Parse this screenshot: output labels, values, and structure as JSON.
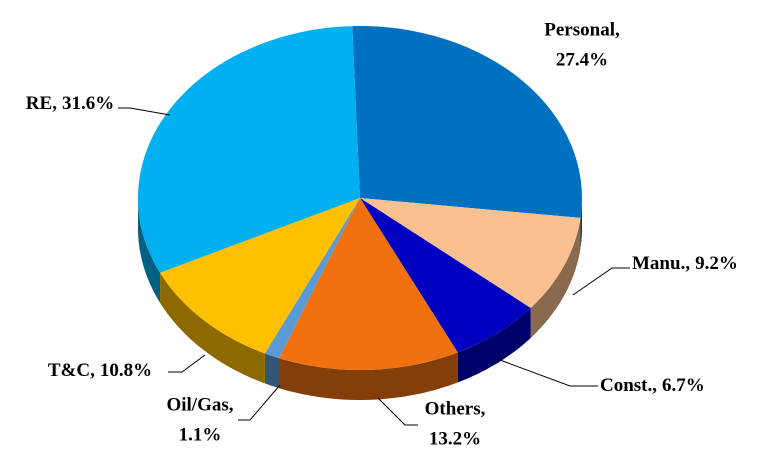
{
  "chart_data": {
    "type": "pie",
    "categories": [
      "Personal,",
      "Manu.,",
      "Const.,",
      "Others,",
      "Oil/Gas,",
      "T&C,",
      "RE,"
    ],
    "values": [
      27.4,
      9.2,
      6.7,
      13.2,
      1.1,
      10.8,
      31.6
    ],
    "value_labels": [
      "27.4%",
      "9.2%",
      "6.7%",
      "13.2%",
      "1.1%",
      "10.8%",
      "31.6%"
    ],
    "colors": [
      "#0070c0",
      "#fac090",
      "#0000c0",
      "#f07010",
      "#5b9bd5",
      "#ffc000",
      "#00b0f0"
    ]
  }
}
